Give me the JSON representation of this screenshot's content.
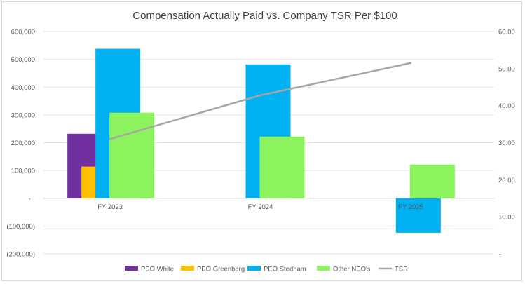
{
  "chart_data": {
    "type": "bar",
    "title": "Compensation Actually Paid vs. Company TSR Per $100",
    "categories": [
      "FY 2023",
      "FY 2024",
      "FY 2025"
    ],
    "series": [
      {
        "name": "PEO White",
        "type": "bar",
        "axis": "left",
        "color": "#7030A0",
        "values": [
          232000,
          null,
          null
        ]
      },
      {
        "name": "PEO Greenberg",
        "type": "bar",
        "axis": "left",
        "color": "#FFC000",
        "values": [
          114000,
          null,
          null
        ]
      },
      {
        "name": "PEO Stedham",
        "type": "bar",
        "axis": "left",
        "color": "#00B0F0",
        "values": [
          538000,
          482000,
          -124000
        ]
      },
      {
        "name": "Other NEO's",
        "type": "bar",
        "axis": "left",
        "color": "#8CF25E",
        "values": [
          308000,
          222000,
          121000
        ]
      },
      {
        "name": "TSR",
        "type": "line",
        "axis": "right",
        "color": "#A6A6A6",
        "values": [
          31.0,
          42.8,
          51.5
        ]
      }
    ],
    "left_axis": {
      "range": [
        -200000,
        600000
      ],
      "ticks": [
        "(200,000)",
        "(100,000)",
        "-",
        "100,000",
        "200,000",
        "300,000",
        "400,000",
        "500,000",
        "600,000"
      ]
    },
    "right_axis": {
      "range": [
        0,
        60
      ],
      "ticks": [
        "-",
        "10.00",
        "20.00",
        "30.00",
        "40.00",
        "50.00",
        "60.00"
      ]
    },
    "grid": true,
    "legend": "bottom"
  }
}
